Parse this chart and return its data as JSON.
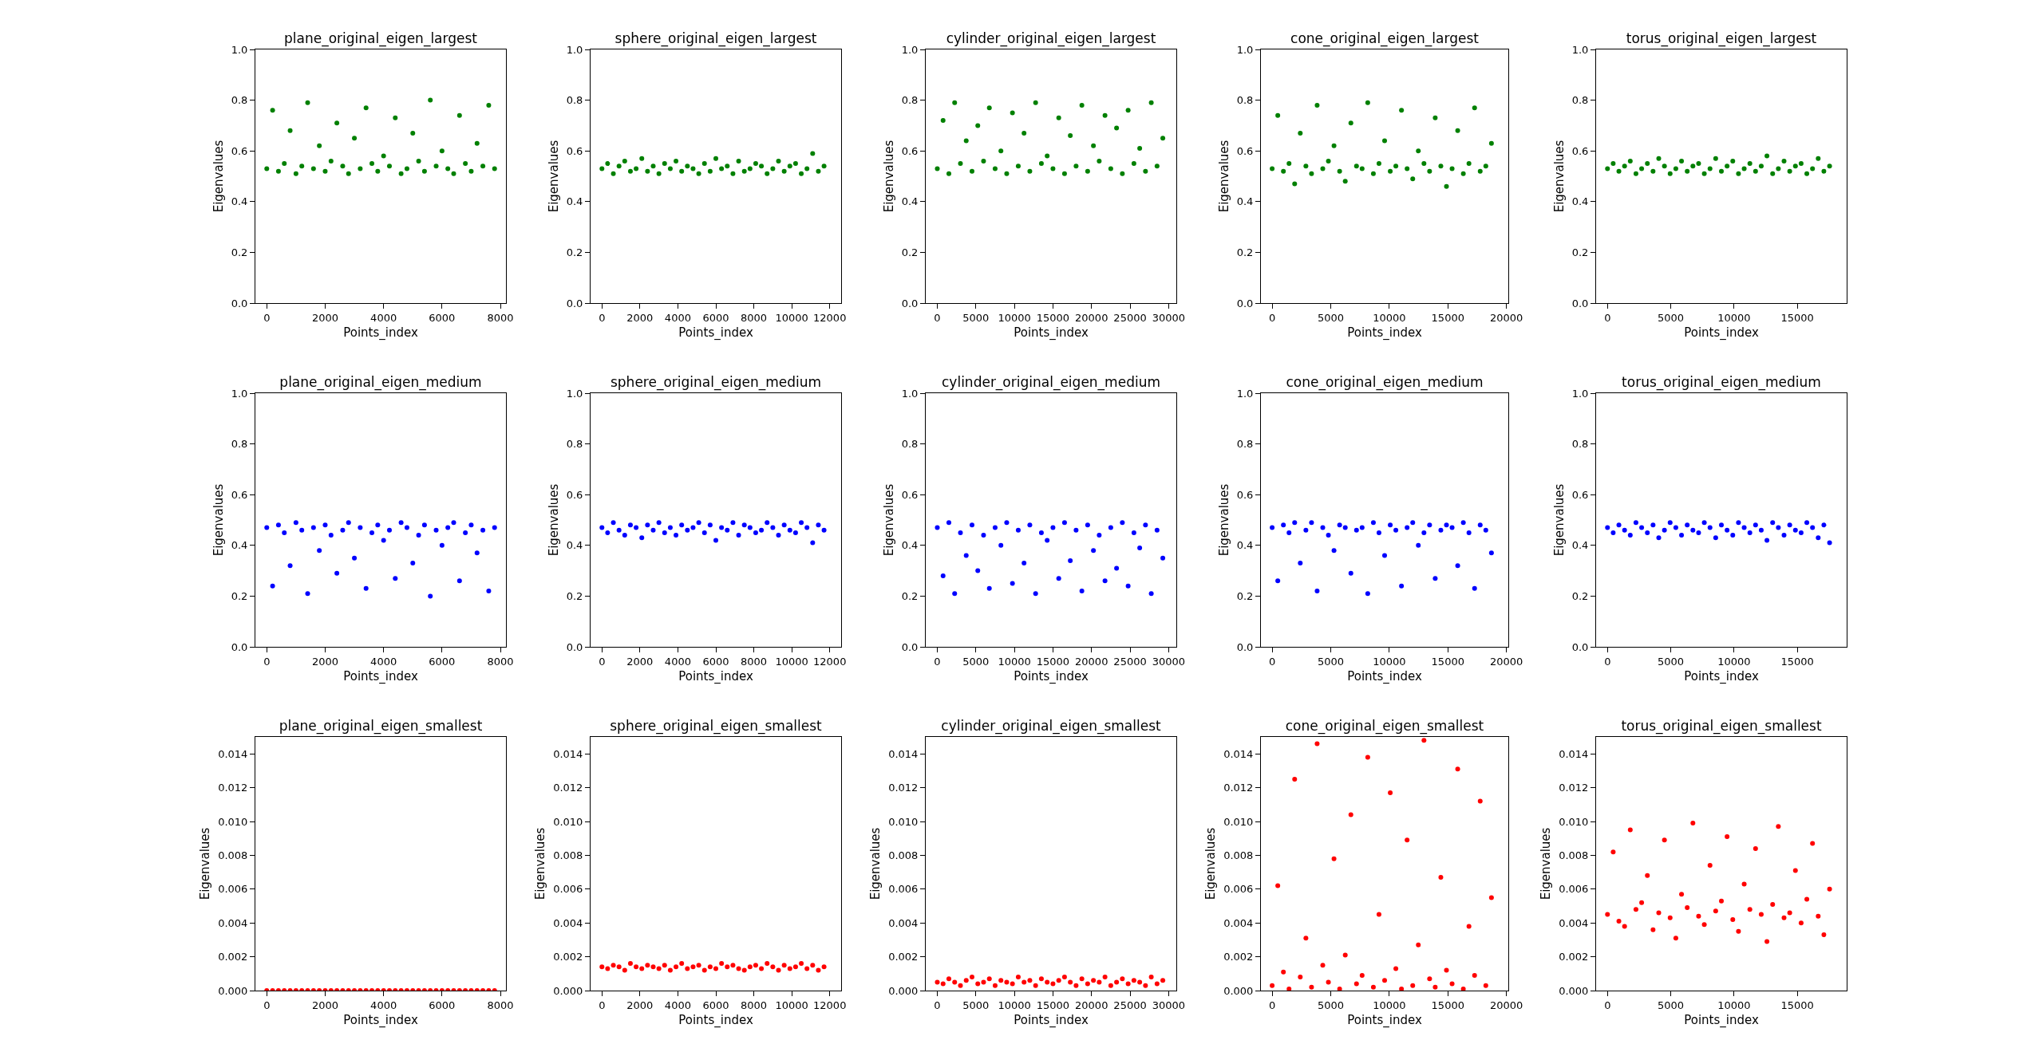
{
  "chart_data": [
    {
      "type": "scatter",
      "title": "plane_original_eigen_largest",
      "xlabel": "Points_index",
      "ylabel": "Eigenvalues",
      "marker": "circle",
      "xlim": [
        -390,
        8190
      ],
      "xticks": [
        0,
        2000,
        4000,
        6000,
        8000
      ],
      "ylim": [
        0,
        1
      ],
      "yticks": [
        {
          "value": 0,
          "label": "0.0"
        },
        {
          "value": 0.2,
          "label": "0.2"
        },
        {
          "value": 0.4,
          "label": "0.4"
        },
        {
          "value": 0.6,
          "label": "0.6"
        },
        {
          "value": 0.8,
          "label": "0.8"
        },
        {
          "value": 1,
          "label": "1.0"
        }
      ],
      "x": [
        0,
        200,
        400,
        600,
        800,
        1000,
        1200,
        1400,
        1600,
        1800,
        2000,
        2200,
        2400,
        2600,
        2800,
        3000,
        3200,
        3400,
        3600,
        3800,
        4000,
        4200,
        4400,
        4600,
        4800,
        5000,
        5200,
        5400,
        5600,
        5800,
        6000,
        6200,
        6400,
        6600,
        6800,
        7000,
        7200,
        7400,
        7600,
        7800
      ],
      "series": [
        {
          "color": "#008000",
          "values": [
            0.53,
            0.76,
            0.52,
            0.55,
            0.68,
            0.51,
            0.54,
            0.79,
            0.53,
            0.62,
            0.52,
            0.56,
            0.71,
            0.54,
            0.51,
            0.65,
            0.53,
            0.77,
            0.55,
            0.52,
            0.58,
            0.54,
            0.73,
            0.51,
            0.53,
            0.67,
            0.56,
            0.52,
            0.8,
            0.54,
            0.6,
            0.53,
            0.51,
            0.74,
            0.55,
            0.52,
            0.63,
            0.54,
            0.78,
            0.53
          ]
        }
      ]
    },
    {
      "type": "scatter",
      "title": "sphere_original_eigen_largest",
      "xlabel": "Points_index",
      "ylabel": "Eigenvalues",
      "marker": "circle",
      "xlim": [
        -600,
        12600
      ],
      "xticks": [
        0,
        2000,
        4000,
        6000,
        8000,
        10000,
        12000
      ],
      "ylim": [
        0,
        1
      ],
      "yticks": [
        {
          "value": 0,
          "label": "0.0"
        },
        {
          "value": 0.2,
          "label": "0.2"
        },
        {
          "value": 0.4,
          "label": "0.4"
        },
        {
          "value": 0.6,
          "label": "0.6"
        },
        {
          "value": 0.8,
          "label": "0.8"
        },
        {
          "value": 1,
          "label": "1.0"
        }
      ],
      "x": [
        0,
        300,
        600,
        900,
        1200,
        1500,
        1800,
        2100,
        2400,
        2700,
        3000,
        3300,
        3600,
        3900,
        4200,
        4500,
        4800,
        5100,
        5400,
        5700,
        6000,
        6300,
        6600,
        6900,
        7200,
        7500,
        7800,
        8100,
        8400,
        8700,
        9000,
        9300,
        9600,
        9900,
        10200,
        10500,
        10800,
        11100,
        11400,
        11700
      ],
      "series": [
        {
          "color": "#008000",
          "values": [
            0.53,
            0.55,
            0.51,
            0.54,
            0.56,
            0.52,
            0.53,
            0.57,
            0.52,
            0.54,
            0.51,
            0.55,
            0.53,
            0.56,
            0.52,
            0.54,
            0.53,
            0.51,
            0.55,
            0.52,
            0.57,
            0.53,
            0.54,
            0.51,
            0.56,
            0.52,
            0.53,
            0.55,
            0.54,
            0.51,
            0.53,
            0.56,
            0.52,
            0.54,
            0.55,
            0.51,
            0.53,
            0.59,
            0.52,
            0.54
          ]
        }
      ]
    },
    {
      "type": "scatter",
      "title": "cylinder_original_eigen_largest",
      "xlabel": "Points_index",
      "ylabel": "Eigenvalues",
      "marker": "circle",
      "xlim": [
        -1500,
        31000
      ],
      "xticks": [
        0,
        5000,
        10000,
        15000,
        20000,
        25000,
        30000
      ],
      "ylim": [
        0,
        1
      ],
      "yticks": [
        {
          "value": 0,
          "label": "0.0"
        },
        {
          "value": 0.2,
          "label": "0.2"
        },
        {
          "value": 0.4,
          "label": "0.4"
        },
        {
          "value": 0.6,
          "label": "0.6"
        },
        {
          "value": 0.8,
          "label": "0.8"
        },
        {
          "value": 1,
          "label": "1.0"
        }
      ],
      "x": [
        0,
        750,
        1500,
        2250,
        3000,
        3750,
        4500,
        5250,
        6000,
        6750,
        7500,
        8250,
        9000,
        9750,
        10500,
        11250,
        12000,
        12750,
        13500,
        14250,
        15000,
        15750,
        16500,
        17250,
        18000,
        18750,
        19500,
        20250,
        21000,
        21750,
        22500,
        23250,
        24000,
        24750,
        25500,
        26250,
        27000,
        27750,
        28500,
        29250
      ],
      "series": [
        {
          "color": "#008000",
          "values": [
            0.53,
            0.72,
            0.51,
            0.79,
            0.55,
            0.64,
            0.52,
            0.7,
            0.56,
            0.77,
            0.53,
            0.6,
            0.51,
            0.75,
            0.54,
            0.67,
            0.52,
            0.79,
            0.55,
            0.58,
            0.53,
            0.73,
            0.51,
            0.66,
            0.54,
            0.78,
            0.52,
            0.62,
            0.56,
            0.74,
            0.53,
            0.69,
            0.51,
            0.76,
            0.55,
            0.61,
            0.52,
            0.79,
            0.54,
            0.65
          ]
        }
      ]
    },
    {
      "type": "scatter",
      "title": "cone_original_eigen_largest",
      "xlabel": "Points_index",
      "ylabel": "Eigenvalues",
      "marker": "circle",
      "xlim": [
        -960,
        20160
      ],
      "xticks": [
        0,
        5000,
        10000,
        15000,
        20000
      ],
      "ylim": [
        0,
        1
      ],
      "yticks": [
        {
          "value": 0,
          "label": "0.0"
        },
        {
          "value": 0.2,
          "label": "0.2"
        },
        {
          "value": 0.4,
          "label": "0.4"
        },
        {
          "value": 0.6,
          "label": "0.6"
        },
        {
          "value": 0.8,
          "label": "0.8"
        },
        {
          "value": 1,
          "label": "1.0"
        }
      ],
      "x": [
        0,
        480,
        960,
        1440,
        1920,
        2400,
        2880,
        3360,
        3840,
        4320,
        4800,
        5280,
        5760,
        6240,
        6720,
        7200,
        7680,
        8160,
        8640,
        9120,
        9600,
        10080,
        10560,
        11040,
        11520,
        12000,
        12480,
        12960,
        13440,
        13920,
        14400,
        14880,
        15360,
        15840,
        16320,
        16800,
        17280,
        17760,
        18240,
        18720
      ],
      "series": [
        {
          "color": "#008000",
          "values": [
            0.53,
            0.74,
            0.52,
            0.55,
            0.47,
            0.67,
            0.54,
            0.51,
            0.78,
            0.53,
            0.56,
            0.62,
            0.52,
            0.48,
            0.71,
            0.54,
            0.53,
            0.79,
            0.51,
            0.55,
            0.64,
            0.52,
            0.54,
            0.76,
            0.53,
            0.49,
            0.6,
            0.55,
            0.52,
            0.73,
            0.54,
            0.46,
            0.53,
            0.68,
            0.51,
            0.55,
            0.77,
            0.52,
            0.54,
            0.63
          ]
        }
      ]
    },
    {
      "type": "scatter",
      "title": "torus_original_eigen_largest",
      "xlabel": "Points_index",
      "ylabel": "Eigenvalues",
      "marker": "circle",
      "xlim": [
        -900,
        18900
      ],
      "xticks": [
        0,
        5000,
        10000,
        15000
      ],
      "ylim": [
        0,
        1
      ],
      "yticks": [
        {
          "value": 0,
          "label": "0.0"
        },
        {
          "value": 0.2,
          "label": "0.2"
        },
        {
          "value": 0.4,
          "label": "0.4"
        },
        {
          "value": 0.6,
          "label": "0.6"
        },
        {
          "value": 0.8,
          "label": "0.8"
        },
        {
          "value": 1,
          "label": "1.0"
        }
      ],
      "x": [
        0,
        450,
        900,
        1350,
        1800,
        2250,
        2700,
        3150,
        3600,
        4050,
        4500,
        4950,
        5400,
        5850,
        6300,
        6750,
        7200,
        7650,
        8100,
        8550,
        9000,
        9450,
        9900,
        10350,
        10800,
        11250,
        11700,
        12150,
        12600,
        13050,
        13500,
        13950,
        14400,
        14850,
        15300,
        15750,
        16200,
        16650,
        17100,
        17550
      ],
      "series": [
        {
          "color": "#008000",
          "values": [
            0.53,
            0.55,
            0.52,
            0.54,
            0.56,
            0.51,
            0.53,
            0.55,
            0.52,
            0.57,
            0.54,
            0.51,
            0.53,
            0.56,
            0.52,
            0.54,
            0.55,
            0.51,
            0.53,
            0.57,
            0.52,
            0.54,
            0.56,
            0.51,
            0.53,
            0.55,
            0.52,
            0.54,
            0.58,
            0.51,
            0.53,
            0.56,
            0.52,
            0.54,
            0.55,
            0.51,
            0.53,
            0.57,
            0.52,
            0.54
          ]
        }
      ]
    },
    {
      "type": "scatter",
      "title": "plane_original_eigen_medium",
      "xlabel": "Points_index",
      "ylabel": "Eigenvalues",
      "marker": "circle",
      "xlim": [
        -390,
        8190
      ],
      "xticks": [
        0,
        2000,
        4000,
        6000,
        8000
      ],
      "ylim": [
        0,
        1
      ],
      "yticks": [
        {
          "value": 0,
          "label": "0.0"
        },
        {
          "value": 0.2,
          "label": "0.2"
        },
        {
          "value": 0.4,
          "label": "0.4"
        },
        {
          "value": 0.6,
          "label": "0.6"
        },
        {
          "value": 0.8,
          "label": "0.8"
        },
        {
          "value": 1,
          "label": "1.0"
        }
      ],
      "x": [
        0,
        200,
        400,
        600,
        800,
        1000,
        1200,
        1400,
        1600,
        1800,
        2000,
        2200,
        2400,
        2600,
        2800,
        3000,
        3200,
        3400,
        3600,
        3800,
        4000,
        4200,
        4400,
        4600,
        4800,
        5000,
        5200,
        5400,
        5600,
        5800,
        6000,
        6200,
        6400,
        6600,
        6800,
        7000,
        7200,
        7400,
        7600,
        7800
      ],
      "series": [
        {
          "color": "#0000ff",
          "values": [
            0.47,
            0.24,
            0.48,
            0.45,
            0.32,
            0.49,
            0.46,
            0.21,
            0.47,
            0.38,
            0.48,
            0.44,
            0.29,
            0.46,
            0.49,
            0.35,
            0.47,
            0.23,
            0.45,
            0.48,
            0.42,
            0.46,
            0.27,
            0.49,
            0.47,
            0.33,
            0.44,
            0.48,
            0.2,
            0.46,
            0.4,
            0.47,
            0.49,
            0.26,
            0.45,
            0.48,
            0.37,
            0.46,
            0.22,
            0.47
          ]
        }
      ]
    },
    {
      "type": "scatter",
      "title": "sphere_original_eigen_medium",
      "xlabel": "Points_index",
      "ylabel": "Eigenvalues",
      "marker": "circle",
      "xlim": [
        -600,
        12600
      ],
      "xticks": [
        0,
        2000,
        4000,
        6000,
        8000,
        10000,
        12000
      ],
      "ylim": [
        0,
        1
      ],
      "yticks": [
        {
          "value": 0,
          "label": "0.0"
        },
        {
          "value": 0.2,
          "label": "0.2"
        },
        {
          "value": 0.4,
          "label": "0.4"
        },
        {
          "value": 0.6,
          "label": "0.6"
        },
        {
          "value": 0.8,
          "label": "0.8"
        },
        {
          "value": 1,
          "label": "1.0"
        }
      ],
      "x": [
        0,
        300,
        600,
        900,
        1200,
        1500,
        1800,
        2100,
        2400,
        2700,
        3000,
        3300,
        3600,
        3900,
        4200,
        4500,
        4800,
        5100,
        5400,
        5700,
        6000,
        6300,
        6600,
        6900,
        7200,
        7500,
        7800,
        8100,
        8400,
        8700,
        9000,
        9300,
        9600,
        9900,
        10200,
        10500,
        10800,
        11100,
        11400,
        11700
      ],
      "series": [
        {
          "color": "#0000ff",
          "values": [
            0.47,
            0.45,
            0.49,
            0.46,
            0.44,
            0.48,
            0.47,
            0.43,
            0.48,
            0.46,
            0.49,
            0.45,
            0.47,
            0.44,
            0.48,
            0.46,
            0.47,
            0.49,
            0.45,
            0.48,
            0.42,
            0.47,
            0.46,
            0.49,
            0.44,
            0.48,
            0.47,
            0.45,
            0.46,
            0.49,
            0.47,
            0.44,
            0.48,
            0.46,
            0.45,
            0.49,
            0.47,
            0.41,
            0.48,
            0.46
          ]
        }
      ]
    },
    {
      "type": "scatter",
      "title": "cylinder_original_eigen_medium",
      "xlabel": "Points_index",
      "ylabel": "Eigenvalues",
      "marker": "circle",
      "xlim": [
        -1500,
        31000
      ],
      "xticks": [
        0,
        5000,
        10000,
        15000,
        20000,
        25000,
        30000
      ],
      "ylim": [
        0,
        1
      ],
      "yticks": [
        {
          "value": 0,
          "label": "0.0"
        },
        {
          "value": 0.2,
          "label": "0.2"
        },
        {
          "value": 0.4,
          "label": "0.4"
        },
        {
          "value": 0.6,
          "label": "0.6"
        },
        {
          "value": 0.8,
          "label": "0.8"
        },
        {
          "value": 1,
          "label": "1.0"
        }
      ],
      "x": [
        0,
        750,
        1500,
        2250,
        3000,
        3750,
        4500,
        5250,
        6000,
        6750,
        7500,
        8250,
        9000,
        9750,
        10500,
        11250,
        12000,
        12750,
        13500,
        14250,
        15000,
        15750,
        16500,
        17250,
        18000,
        18750,
        19500,
        20250,
        21000,
        21750,
        22500,
        23250,
        24000,
        24750,
        25500,
        26250,
        27000,
        27750,
        28500,
        29250
      ],
      "series": [
        {
          "color": "#0000ff",
          "values": [
            0.47,
            0.28,
            0.49,
            0.21,
            0.45,
            0.36,
            0.48,
            0.3,
            0.44,
            0.23,
            0.47,
            0.4,
            0.49,
            0.25,
            0.46,
            0.33,
            0.48,
            0.21,
            0.45,
            0.42,
            0.47,
            0.27,
            0.49,
            0.34,
            0.46,
            0.22,
            0.48,
            0.38,
            0.44,
            0.26,
            0.47,
            0.31,
            0.49,
            0.24,
            0.45,
            0.39,
            0.48,
            0.21,
            0.46,
            0.35
          ]
        }
      ]
    },
    {
      "type": "scatter",
      "title": "cone_original_eigen_medium",
      "xlabel": "Points_index",
      "ylabel": "Eigenvalues",
      "marker": "circle",
      "xlim": [
        -960,
        20160
      ],
      "xticks": [
        0,
        5000,
        10000,
        15000,
        20000
      ],
      "ylim": [
        0,
        1
      ],
      "yticks": [
        {
          "value": 0,
          "label": "0.0"
        },
        {
          "value": 0.2,
          "label": "0.2"
        },
        {
          "value": 0.4,
          "label": "0.4"
        },
        {
          "value": 0.6,
          "label": "0.6"
        },
        {
          "value": 0.8,
          "label": "0.8"
        },
        {
          "value": 1,
          "label": "1.0"
        }
      ],
      "x": [
        0,
        480,
        960,
        1440,
        1920,
        2400,
        2880,
        3360,
        3840,
        4320,
        4800,
        5280,
        5760,
        6240,
        6720,
        7200,
        7680,
        8160,
        8640,
        9120,
        9600,
        10080,
        10560,
        11040,
        11520,
        12000,
        12480,
        12960,
        13440,
        13920,
        14400,
        14880,
        15360,
        15840,
        16320,
        16800,
        17280,
        17760,
        18240,
        18720
      ],
      "series": [
        {
          "color": "#0000ff",
          "values": [
            0.47,
            0.26,
            0.48,
            0.45,
            0.49,
            0.33,
            0.46,
            0.49,
            0.22,
            0.47,
            0.44,
            0.38,
            0.48,
            0.47,
            0.29,
            0.46,
            0.47,
            0.21,
            0.49,
            0.45,
            0.36,
            0.48,
            0.46,
            0.24,
            0.47,
            0.49,
            0.4,
            0.45,
            0.48,
            0.27,
            0.46,
            0.48,
            0.47,
            0.32,
            0.49,
            0.45,
            0.23,
            0.48,
            0.46,
            0.37
          ]
        }
      ]
    },
    {
      "type": "scatter",
      "title": "torus_original_eigen_medium",
      "xlabel": "Points_index",
      "ylabel": "Eigenvalues",
      "marker": "circle",
      "xlim": [
        -900,
        18900
      ],
      "xticks": [
        0,
        5000,
        10000,
        15000
      ],
      "ylim": [
        0,
        1
      ],
      "yticks": [
        {
          "value": 0,
          "label": "0.0"
        },
        {
          "value": 0.2,
          "label": "0.2"
        },
        {
          "value": 0.4,
          "label": "0.4"
        },
        {
          "value": 0.6,
          "label": "0.6"
        },
        {
          "value": 0.8,
          "label": "0.8"
        },
        {
          "value": 1,
          "label": "1.0"
        }
      ],
      "x": [
        0,
        450,
        900,
        1350,
        1800,
        2250,
        2700,
        3150,
        3600,
        4050,
        4500,
        4950,
        5400,
        5850,
        6300,
        6750,
        7200,
        7650,
        8100,
        8550,
        9000,
        9450,
        9900,
        10350,
        10800,
        11250,
        11700,
        12150,
        12600,
        13050,
        13500,
        13950,
        14400,
        14850,
        15300,
        15750,
        16200,
        16650,
        17100,
        17550
      ],
      "series": [
        {
          "color": "#0000ff",
          "values": [
            0.47,
            0.45,
            0.48,
            0.46,
            0.44,
            0.49,
            0.47,
            0.45,
            0.48,
            0.43,
            0.46,
            0.49,
            0.47,
            0.44,
            0.48,
            0.46,
            0.45,
            0.49,
            0.47,
            0.43,
            0.48,
            0.46,
            0.44,
            0.49,
            0.47,
            0.45,
            0.48,
            0.46,
            0.42,
            0.49,
            0.47,
            0.44,
            0.48,
            0.46,
            0.45,
            0.49,
            0.47,
            0.43,
            0.48,
            0.41
          ]
        }
      ]
    },
    {
      "type": "scatter",
      "title": "plane_original_eigen_smallest",
      "xlabel": "Points_index",
      "ylabel": "Eigenvalues",
      "marker": "circle",
      "xlim": [
        -390,
        8190
      ],
      "xticks": [
        0,
        2000,
        4000,
        6000,
        8000
      ],
      "ylim": [
        0,
        0.015
      ],
      "yticks": [
        {
          "value": 0,
          "label": "0.000"
        },
        {
          "value": 0.002,
          "label": "0.002"
        },
        {
          "value": 0.004,
          "label": "0.004"
        },
        {
          "value": 0.006,
          "label": "0.006"
        },
        {
          "value": 0.008,
          "label": "0.008"
        },
        {
          "value": 0.01,
          "label": "0.010"
        },
        {
          "value": 0.012,
          "label": "0.012"
        },
        {
          "value": 0.014,
          "label": "0.014"
        }
      ],
      "x": [
        0,
        200,
        400,
        600,
        800,
        1000,
        1200,
        1400,
        1600,
        1800,
        2000,
        2200,
        2400,
        2600,
        2800,
        3000,
        3200,
        3400,
        3600,
        3800,
        4000,
        4200,
        4400,
        4600,
        4800,
        5000,
        5200,
        5400,
        5600,
        5800,
        6000,
        6200,
        6400,
        6600,
        6800,
        7000,
        7200,
        7400,
        7600,
        7800
      ],
      "series": [
        {
          "color": "#ff0000",
          "values": [
            0,
            0,
            0,
            0,
            0,
            0,
            0,
            0,
            0,
            0,
            0,
            0,
            0,
            0,
            0,
            0,
            0,
            0,
            0,
            0,
            0,
            0,
            0,
            0,
            0,
            0,
            0,
            0,
            0,
            0,
            0,
            0,
            0,
            0,
            0,
            0,
            0,
            0,
            0,
            0
          ]
        }
      ]
    },
    {
      "type": "scatter",
      "title": "sphere_original_eigen_smallest",
      "xlabel": "Points_index",
      "ylabel": "Eigenvalues",
      "marker": "circle",
      "xlim": [
        -600,
        12600
      ],
      "xticks": [
        0,
        2000,
        4000,
        6000,
        8000,
        10000,
        12000
      ],
      "ylim": [
        0,
        0.015
      ],
      "yticks": [
        {
          "value": 0,
          "label": "0.000"
        },
        {
          "value": 0.002,
          "label": "0.002"
        },
        {
          "value": 0.004,
          "label": "0.004"
        },
        {
          "value": 0.006,
          "label": "0.006"
        },
        {
          "value": 0.008,
          "label": "0.008"
        },
        {
          "value": 0.01,
          "label": "0.010"
        },
        {
          "value": 0.012,
          "label": "0.012"
        },
        {
          "value": 0.014,
          "label": "0.014"
        }
      ],
      "x": [
        0,
        300,
        600,
        900,
        1200,
        1500,
        1800,
        2100,
        2400,
        2700,
        3000,
        3300,
        3600,
        3900,
        4200,
        4500,
        4800,
        5100,
        5400,
        5700,
        6000,
        6300,
        6600,
        6900,
        7200,
        7500,
        7800,
        8100,
        8400,
        8700,
        9000,
        9300,
        9600,
        9900,
        10200,
        10500,
        10800,
        11100,
        11400,
        11700
      ],
      "series": [
        {
          "color": "#ff0000",
          "values": [
            0.0014,
            0.0013,
            0.0015,
            0.0014,
            0.0012,
            0.0016,
            0.0014,
            0.0013,
            0.0015,
            0.0014,
            0.0013,
            0.0015,
            0.0012,
            0.0014,
            0.0016,
            0.0013,
            0.0014,
            0.0015,
            0.0012,
            0.0014,
            0.0013,
            0.0016,
            0.0014,
            0.0015,
            0.0013,
            0.0012,
            0.0014,
            0.0015,
            0.0013,
            0.0016,
            0.0014,
            0.0012,
            0.0015,
            0.0013,
            0.0014,
            0.0016,
            0.0013,
            0.0015,
            0.0012,
            0.0014
          ]
        }
      ]
    },
    {
      "type": "scatter",
      "title": "cylinder_original_eigen_smallest",
      "xlabel": "Points_index",
      "ylabel": "Eigenvalues",
      "marker": "circle",
      "xlim": [
        -1500,
        31000
      ],
      "xticks": [
        0,
        5000,
        10000,
        15000,
        20000,
        25000,
        30000
      ],
      "ylim": [
        0,
        0.015
      ],
      "yticks": [
        {
          "value": 0,
          "label": "0.000"
        },
        {
          "value": 0.002,
          "label": "0.002"
        },
        {
          "value": 0.004,
          "label": "0.004"
        },
        {
          "value": 0.006,
          "label": "0.006"
        },
        {
          "value": 0.008,
          "label": "0.008"
        },
        {
          "value": 0.01,
          "label": "0.010"
        },
        {
          "value": 0.012,
          "label": "0.012"
        },
        {
          "value": 0.014,
          "label": "0.014"
        }
      ],
      "x": [
        0,
        750,
        1500,
        2250,
        3000,
        3750,
        4500,
        5250,
        6000,
        6750,
        7500,
        8250,
        9000,
        9750,
        10500,
        11250,
        12000,
        12750,
        13500,
        14250,
        15000,
        15750,
        16500,
        17250,
        18000,
        18750,
        19500,
        20250,
        21000,
        21750,
        22500,
        23250,
        24000,
        24750,
        25500,
        26250,
        27000,
        27750,
        28500,
        29250
      ],
      "series": [
        {
          "color": "#ff0000",
          "values": [
            0.0005,
            0.0004,
            0.0007,
            0.0005,
            0.0003,
            0.0006,
            0.0008,
            0.0004,
            0.0005,
            0.0007,
            0.0003,
            0.0006,
            0.0005,
            0.0004,
            0.0008,
            0.0005,
            0.0006,
            0.0003,
            0.0007,
            0.0005,
            0.0004,
            0.0006,
            0.0008,
            0.0005,
            0.0003,
            0.0007,
            0.0004,
            0.0006,
            0.0005,
            0.0008,
            0.0003,
            0.0005,
            0.0007,
            0.0004,
            0.0006,
            0.0005,
            0.0003,
            0.0008,
            0.0004,
            0.0006
          ]
        }
      ]
    },
    {
      "type": "scatter",
      "title": "cone_original_eigen_smallest",
      "xlabel": "Points_index",
      "ylabel": "Eigenvalues",
      "marker": "circle",
      "xlim": [
        -960,
        20160
      ],
      "xticks": [
        0,
        5000,
        10000,
        15000,
        20000
      ],
      "ylim": [
        0,
        0.015
      ],
      "yticks": [
        {
          "value": 0,
          "label": "0.000"
        },
        {
          "value": 0.002,
          "label": "0.002"
        },
        {
          "value": 0.004,
          "label": "0.004"
        },
        {
          "value": 0.006,
          "label": "0.006"
        },
        {
          "value": 0.008,
          "label": "0.008"
        },
        {
          "value": 0.01,
          "label": "0.010"
        },
        {
          "value": 0.012,
          "label": "0.012"
        },
        {
          "value": 0.014,
          "label": "0.014"
        }
      ],
      "x": [
        0,
        480,
        960,
        1440,
        1920,
        2400,
        2880,
        3360,
        3840,
        4320,
        4800,
        5280,
        5760,
        6240,
        6720,
        7200,
        7680,
        8160,
        8640,
        9120,
        9600,
        10080,
        10560,
        11040,
        11520,
        12000,
        12480,
        12960,
        13440,
        13920,
        14400,
        14880,
        15360,
        15840,
        16320,
        16800,
        17280,
        17760,
        18240,
        18720
      ],
      "series": [
        {
          "color": "#ff0000",
          "values": [
            0.0003,
            0.0062,
            0.0011,
            0.0001,
            0.0125,
            0.0008,
            0.0031,
            0.0002,
            0.0146,
            0.0015,
            0.0005,
            0.0078,
            0.0001,
            0.0021,
            0.0104,
            0.0004,
            0.0009,
            0.0138,
            0.0002,
            0.0045,
            0.0006,
            0.0117,
            0.0013,
            0.0001,
            0.0089,
            0.0003,
            0.0027,
            0.0148,
            0.0007,
            0.0002,
            0.0067,
            0.0012,
            0.0004,
            0.0131,
            0.0001,
            0.0038,
            0.0009,
            0.0112,
            0.0003,
            0.0055
          ]
        }
      ]
    },
    {
      "type": "scatter",
      "title": "torus_original_eigen_smallest",
      "xlabel": "Points_index",
      "ylabel": "Eigenvalues",
      "marker": "circle",
      "xlim": [
        -900,
        18900
      ],
      "xticks": [
        0,
        5000,
        10000,
        15000
      ],
      "ylim": [
        0,
        0.015
      ],
      "yticks": [
        {
          "value": 0,
          "label": "0.000"
        },
        {
          "value": 0.002,
          "label": "0.002"
        },
        {
          "value": 0.004,
          "label": "0.004"
        },
        {
          "value": 0.006,
          "label": "0.006"
        },
        {
          "value": 0.008,
          "label": "0.008"
        },
        {
          "value": 0.01,
          "label": "0.010"
        },
        {
          "value": 0.012,
          "label": "0.012"
        },
        {
          "value": 0.014,
          "label": "0.014"
        }
      ],
      "x": [
        0,
        450,
        900,
        1350,
        1800,
        2250,
        2700,
        3150,
        3600,
        4050,
        4500,
        4950,
        5400,
        5850,
        6300,
        6750,
        7200,
        7650,
        8100,
        8550,
        9000,
        9450,
        9900,
        10350,
        10800,
        11250,
        11700,
        12150,
        12600,
        13050,
        13500,
        13950,
        14400,
        14850,
        15300,
        15750,
        16200,
        16650,
        17100,
        17550
      ],
      "series": [
        {
          "color": "#ff0000",
          "values": [
            0.0045,
            0.0082,
            0.0041,
            0.0038,
            0.0095,
            0.0048,
            0.0052,
            0.0068,
            0.0036,
            0.0046,
            0.0089,
            0.0043,
            0.0031,
            0.0057,
            0.0049,
            0.0099,
            0.0044,
            0.0039,
            0.0074,
            0.0047,
            0.0053,
            0.0091,
            0.0042,
            0.0035,
            0.0063,
            0.0048,
            0.0084,
            0.0045,
            0.0029,
            0.0051,
            0.0097,
            0.0043,
            0.0046,
            0.0071,
            0.004,
            0.0054,
            0.0087,
            0.0044,
            0.0033,
            0.006
          ]
        }
      ]
    }
  ]
}
